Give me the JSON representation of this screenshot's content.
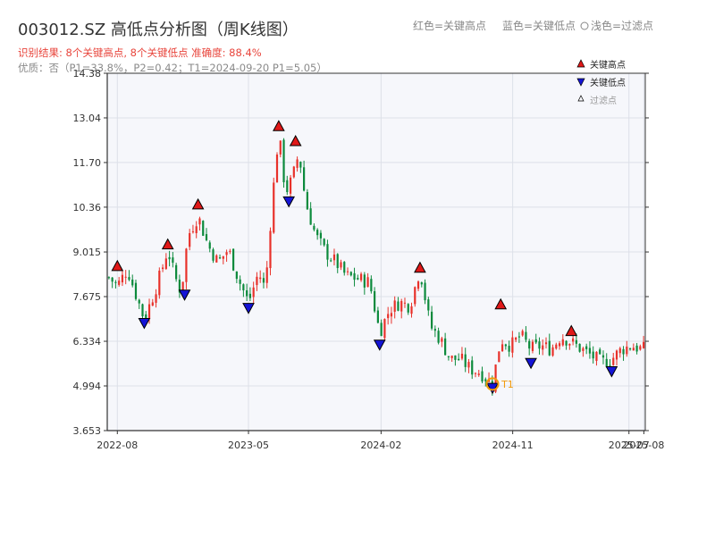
{
  "title": "003012.SZ 高低点分析图（周K线图）",
  "subtitle_result": "识别结果: 8个关键高点, 8个关键低点  准确度: 88.4%",
  "subtitle_quality": "优质：否（P1=33.8%，P2=0.42；T1=2024-09-20 P1=5.05）",
  "legend_top": {
    "red": "红色=关键高点",
    "blue": "蓝色=关键低点",
    "light": "浅色=过滤点"
  },
  "legend_box": {
    "high": "关键高点",
    "low": "关键低点",
    "filtered": "过滤点"
  },
  "colors": {
    "up": "#e8312a",
    "down": "#0c8a3c",
    "high_marker": "#e01818",
    "low_marker": "#1414d6",
    "t1": "#f29b0c"
  },
  "chart_data": {
    "type": "candlestick",
    "title": "003012.SZ 高低点分析图（周K线图）",
    "y_ticks": [
      "3.653",
      "4.994",
      "6.334",
      "7.675",
      "9.015",
      "10.36",
      "11.70",
      "13.04",
      "14.38"
    ],
    "ylim": [
      3.653,
      14.38
    ],
    "x_ticks": [
      {
        "label": "2022-08",
        "date": "2022-08-01"
      },
      {
        "label": "2023-05",
        "date": "2023-05-01"
      },
      {
        "label": "2024-02",
        "date": "2024-02-01"
      },
      {
        "label": "2024-11",
        "date": "2024-11-01"
      },
      {
        "label": "2025-07",
        "date": "2025-07-01"
      },
      {
        "label": "2025-08",
        "date": "2025-08-01"
      }
    ],
    "xlim": [
      "2022-07-11",
      "2025-08-04"
    ],
    "close_path": [
      [
        "2022-07-11",
        8.3
      ],
      [
        "2022-08-01",
        8.0
      ],
      [
        "2022-08-22",
        8.5
      ],
      [
        "2022-09-12",
        7.6
      ],
      [
        "2022-09-26",
        7.0
      ],
      [
        "2022-10-17",
        7.8
      ],
      [
        "2022-10-31",
        8.4
      ],
      [
        "2022-11-14",
        9.1
      ],
      [
        "2022-11-28",
        8.3
      ],
      [
        "2022-12-12",
        7.8
      ],
      [
        "2022-12-26",
        9.5
      ],
      [
        "2023-01-16",
        10.1
      ],
      [
        "2023-02-06",
        9.2
      ],
      [
        "2023-02-27",
        8.7
      ],
      [
        "2023-03-20",
        9.1
      ],
      [
        "2023-04-10",
        8.2
      ],
      [
        "2023-05-01",
        7.5
      ],
      [
        "2023-05-22",
        8.4
      ],
      [
        "2023-06-05",
        7.9
      ],
      [
        "2023-06-19",
        10.5
      ],
      [
        "2023-07-03",
        12.6
      ],
      [
        "2023-07-17",
        10.8
      ],
      [
        "2023-07-31",
        11.2
      ],
      [
        "2023-08-14",
        12.0
      ],
      [
        "2023-08-28",
        10.5
      ],
      [
        "2023-09-18",
        9.5
      ],
      [
        "2023-10-09",
        9.0
      ],
      [
        "2023-10-30",
        8.7
      ],
      [
        "2023-11-20",
        8.3
      ],
      [
        "2023-12-18",
        8.2
      ],
      [
        "2024-01-08",
        8.1
      ],
      [
        "2024-01-29",
        6.6
      ],
      [
        "2024-02-19",
        7.3
      ],
      [
        "2024-03-11",
        7.5
      ],
      [
        "2024-04-01",
        7.4
      ],
      [
        "2024-04-22",
        8.5
      ],
      [
        "2024-05-13",
        6.8
      ],
      [
        "2024-06-03",
        6.4
      ],
      [
        "2024-06-24",
        5.8
      ],
      [
        "2024-07-15",
        5.8
      ],
      [
        "2024-08-05",
        5.5
      ],
      [
        "2024-08-26",
        5.4
      ],
      [
        "2024-09-20",
        5.05
      ],
      [
        "2024-10-07",
        6.4
      ],
      [
        "2024-10-28",
        6.2
      ],
      [
        "2024-11-18",
        6.5
      ],
      [
        "2024-12-09",
        6.1
      ],
      [
        "2024-12-30",
        6.2
      ],
      [
        "2025-01-20",
        6.1
      ],
      [
        "2025-02-10",
        6.5
      ],
      [
        "2025-03-03",
        6.3
      ],
      [
        "2025-03-24",
        6.1
      ],
      [
        "2025-04-14",
        5.9
      ],
      [
        "2025-05-05",
        5.7
      ],
      [
        "2025-05-26",
        5.8
      ],
      [
        "2025-06-16",
        6.1
      ],
      [
        "2025-07-07",
        6.2
      ],
      [
        "2025-07-28",
        6.1
      ]
    ],
    "key_highs": [
      {
        "date": "2022-08-01",
        "value": 8.35
      },
      {
        "date": "2022-11-14",
        "value": 9.0
      },
      {
        "date": "2023-01-16",
        "value": 10.2
      },
      {
        "date": "2023-07-03",
        "value": 12.55
      },
      {
        "date": "2023-08-07",
        "value": 12.1
      },
      {
        "date": "2024-04-22",
        "value": 8.3
      },
      {
        "date": "2024-10-07",
        "value": 7.2
      },
      {
        "date": "2025-03-03",
        "value": 6.4
      }
    ],
    "key_lows": [
      {
        "date": "2022-09-26",
        "value": 7.1
      },
      {
        "date": "2022-12-19",
        "value": 7.95
      },
      {
        "date": "2023-05-01",
        "value": 7.55
      },
      {
        "date": "2023-07-24",
        "value": 10.75
      },
      {
        "date": "2024-01-29",
        "value": 6.45
      },
      {
        "date": "2024-09-20",
        "value": 5.15
      },
      {
        "date": "2024-12-09",
        "value": 5.9
      },
      {
        "date": "2025-05-26",
        "value": 5.65
      }
    ],
    "t1": {
      "label": "T1",
      "date": "2024-09-20",
      "value": 5.05
    }
  }
}
